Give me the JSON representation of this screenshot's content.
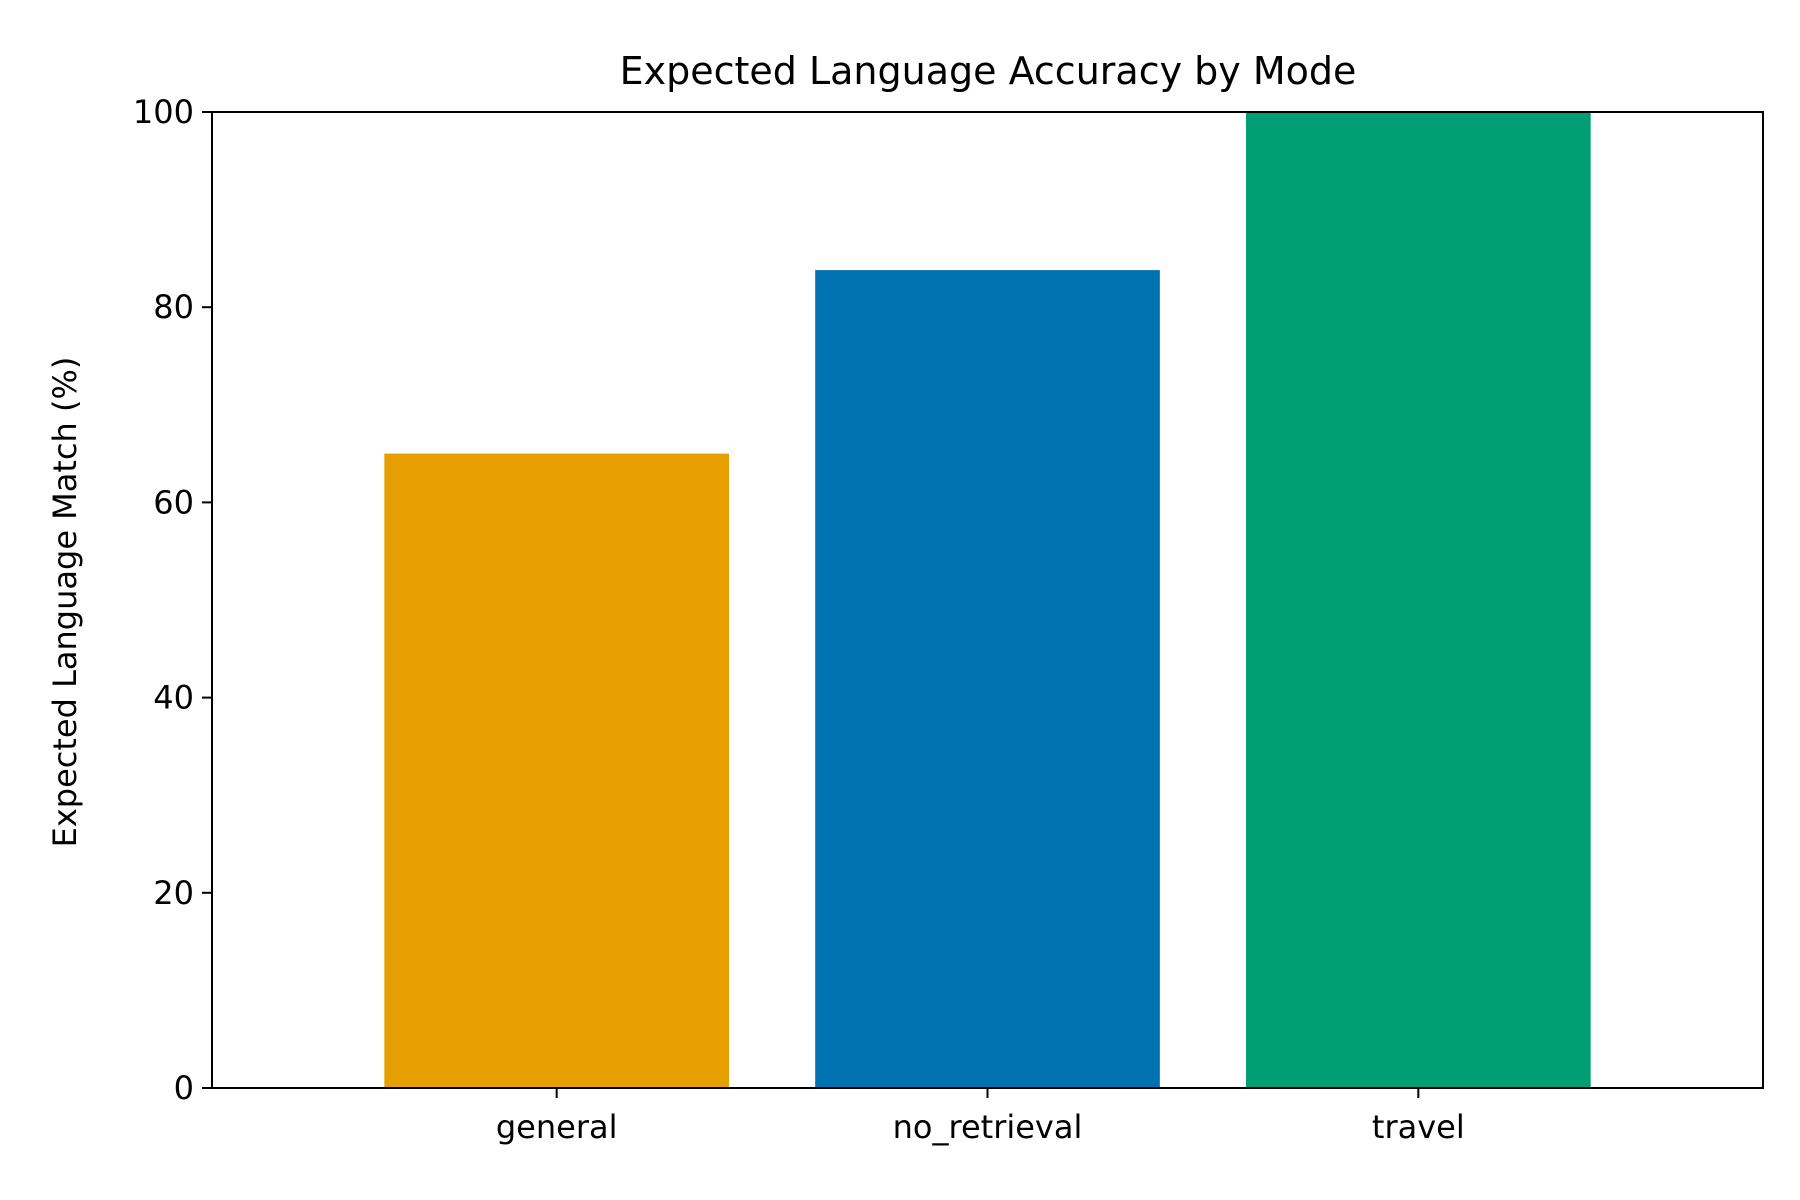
{
  "chart_data": {
    "type": "bar",
    "title": "Expected Language Accuracy by Mode",
    "xlabel": "",
    "ylabel": "Expected Language Match (%)",
    "categories": [
      "general",
      "no_retrieval",
      "travel"
    ],
    "values": [
      65.0,
      83.8,
      100.0
    ],
    "colors": [
      "#E69F00",
      "#0072B2",
      "#009E73"
    ],
    "ylim": [
      0,
      100
    ],
    "yticks": [
      0,
      20,
      40,
      60,
      80,
      100
    ],
    "grid": false,
    "legend": "none"
  }
}
